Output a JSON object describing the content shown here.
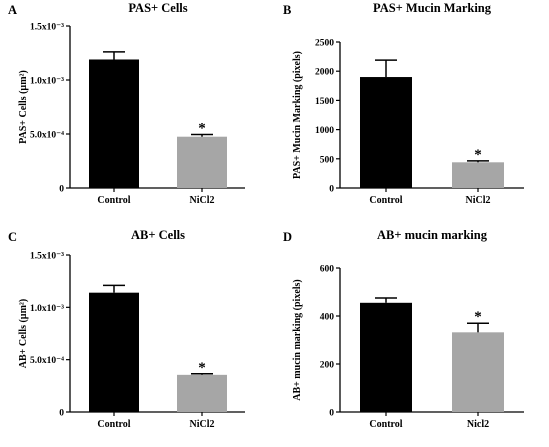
{
  "figure": {
    "background": "#ffffff",
    "bar_colors": [
      "#000000",
      "#a6a6a6"
    ]
  },
  "chart_data": [
    {
      "panel": "A",
      "type": "bar",
      "title": "PAS+ Cells",
      "ylabel": "PAS+ Cells (µm²)",
      "categories": [
        "Control",
        "NiCl2"
      ],
      "values": [
        0.00119,
        0.000475
      ],
      "errors": [
        7e-05,
        2e-05
      ],
      "significance": [
        "",
        "*"
      ],
      "ylim": [
        0,
        0.0015
      ],
      "yticks": [
        0,
        0.0005,
        0.001,
        0.0015
      ],
      "ytick_labels": [
        "0",
        "5.0x10⁻⁴",
        "1.0x10⁻³",
        "1.5x10⁻³"
      ],
      "grid": false,
      "legend": "none"
    },
    {
      "panel": "B",
      "type": "bar",
      "title": "PAS+ Mucin Marking",
      "ylabel": "PAS+ Mucin Marking (pixels)",
      "categories": [
        "Control",
        "NiCl2"
      ],
      "values": [
        1900,
        440
      ],
      "errors": [
        290,
        25
      ],
      "significance": [
        "",
        "*"
      ],
      "ylim": [
        0,
        2500
      ],
      "yticks": [
        0,
        500,
        1000,
        1500,
        2000,
        2500
      ],
      "ytick_labels": [
        "0",
        "500",
        "1000",
        "1500",
        "2000",
        "2500"
      ],
      "grid": false,
      "legend": "none"
    },
    {
      "panel": "C",
      "type": "bar",
      "title": "AB+ Cells",
      "ylabel": "AB+ Cells (µm²)",
      "categories": [
        "Control",
        "NiCl2"
      ],
      "values": [
        0.00114,
        0.000355
      ],
      "errors": [
        7e-05,
        1e-05
      ],
      "significance": [
        "",
        "*"
      ],
      "ylim": [
        0,
        0.0015
      ],
      "yticks": [
        0,
        0.0005,
        0.001,
        0.0015
      ],
      "ytick_labels": [
        "0",
        "5.0x10⁻⁴",
        "1.0x10⁻³",
        "1.5x10⁻³"
      ],
      "grid": false,
      "legend": "none"
    },
    {
      "panel": "D",
      "type": "bar",
      "title": "AB+ mucin marking",
      "ylabel": "AB+ mucin marking (pixels)",
      "categories": [
        "Control",
        "Nicl2"
      ],
      "values": [
        455,
        332
      ],
      "errors": [
        20,
        38
      ],
      "significance": [
        "",
        "*"
      ],
      "ylim": [
        0,
        600
      ],
      "yticks": [
        0,
        200,
        400,
        600
      ],
      "ytick_labels": [
        "0",
        "200",
        "400",
        "600"
      ],
      "grid": false,
      "legend": "none"
    }
  ]
}
